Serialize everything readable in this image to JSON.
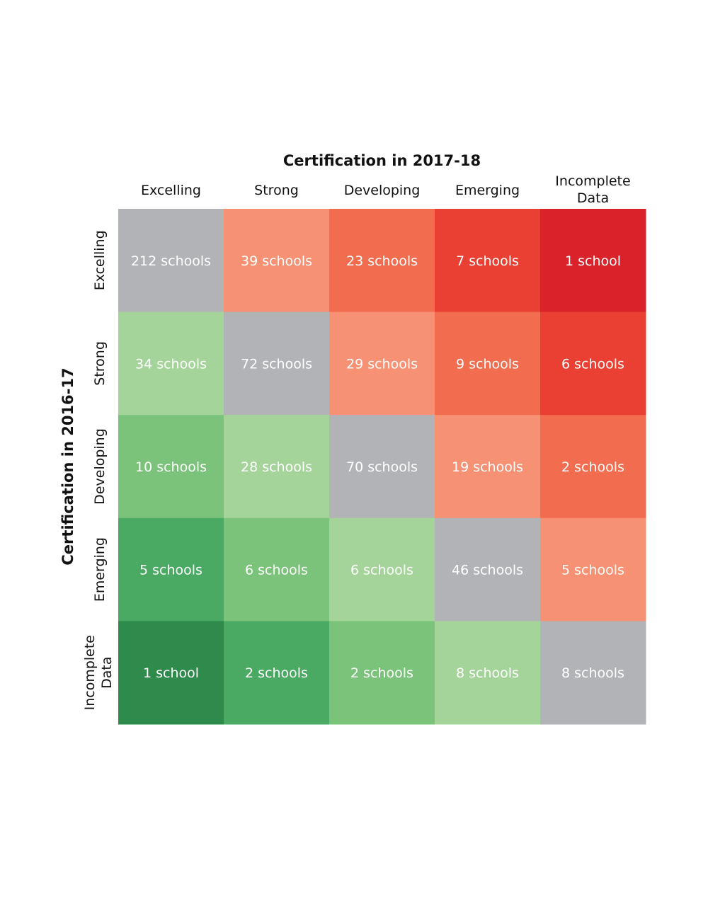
{
  "chart_data": {
    "type": "heatmap",
    "xlabel": "Certification in 2017-18",
    "ylabel": "Certification in 2016-17",
    "x_categories": [
      "Excelling",
      "Strong",
      "Developing",
      "Emerging",
      "Incomplete Data"
    ],
    "y_categories": [
      "Excelling",
      "Strong",
      "Developing",
      "Emerging",
      "Incomplete Data"
    ],
    "values": [
      [
        212,
        39,
        23,
        7,
        1
      ],
      [
        34,
        72,
        29,
        9,
        6
      ],
      [
        10,
        28,
        70,
        19,
        2
      ],
      [
        5,
        6,
        6,
        46,
        5
      ],
      [
        1,
        2,
        2,
        8,
        8
      ]
    ],
    "cell_labels": [
      [
        "212 schools",
        "39 schools",
        "23 schools",
        "7 schools",
        "1 school"
      ],
      [
        "34 schools",
        "72 schools",
        "29 schools",
        "9 schools",
        "6 schools"
      ],
      [
        "10 schools",
        "28 schools",
        "70 schools",
        "19 schools",
        "2 schools"
      ],
      [
        "5 schools",
        "6 schools",
        "6 schools",
        "46 schools",
        "5 schools"
      ],
      [
        "1 school",
        "2 schools",
        "2 schools",
        "8 schools",
        "8 schools"
      ]
    ],
    "colors": {
      "same": "#b2b3b6",
      "down": [
        "#f69174",
        "#f26c4f",
        "#e94033",
        "#d92229"
      ],
      "up": [
        "#a5d49b",
        "#7bc37a",
        "#4aa963",
        "#2e8b4b"
      ]
    }
  }
}
